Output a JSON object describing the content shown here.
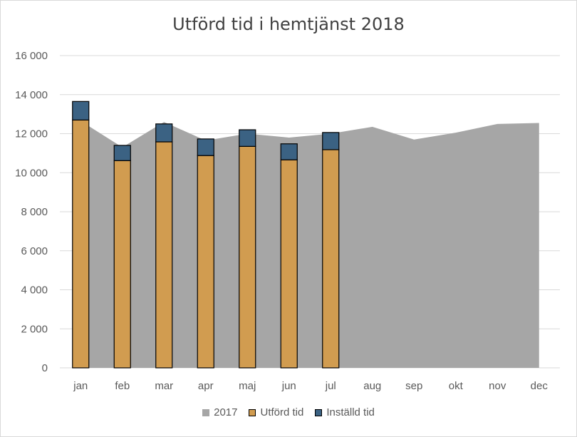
{
  "chart_data": {
    "type": "bar",
    "title": "Utförd tid i hemtjänst 2018",
    "xlabel": "",
    "ylabel": "",
    "ylim": [
      0,
      16000
    ],
    "yticks": [
      0,
      2000,
      4000,
      6000,
      8000,
      10000,
      12000,
      14000,
      16000
    ],
    "ytick_labels": [
      "0",
      "2 000",
      "4 000",
      "6 000",
      "8 000",
      "10 000",
      "12 000",
      "14 000",
      "16 000"
    ],
    "categories": [
      "jan",
      "feb",
      "mar",
      "apr",
      "maj",
      "jun",
      "jul",
      "aug",
      "sep",
      "okt",
      "nov",
      "dec"
    ],
    "grid": true,
    "legend_position": "bottom",
    "series": [
      {
        "name": "2017",
        "kind": "area",
        "color": "#a6a6a6",
        "values": [
          12650,
          11300,
          12600,
          11650,
          12000,
          11800,
          12000,
          12350,
          11700,
          12050,
          12500,
          12550
        ]
      },
      {
        "name": "Utförd tid",
        "kind": "stacked-bar",
        "color": "#d19c50",
        "values": [
          12700,
          10620,
          11580,
          10880,
          11350,
          10660,
          11180,
          null,
          null,
          null,
          null,
          null
        ]
      },
      {
        "name": "Inställd tid",
        "kind": "stacked-bar",
        "color": "#3b6283",
        "values": [
          950,
          780,
          920,
          850,
          850,
          820,
          880,
          null,
          null,
          null,
          null,
          null
        ]
      }
    ]
  }
}
